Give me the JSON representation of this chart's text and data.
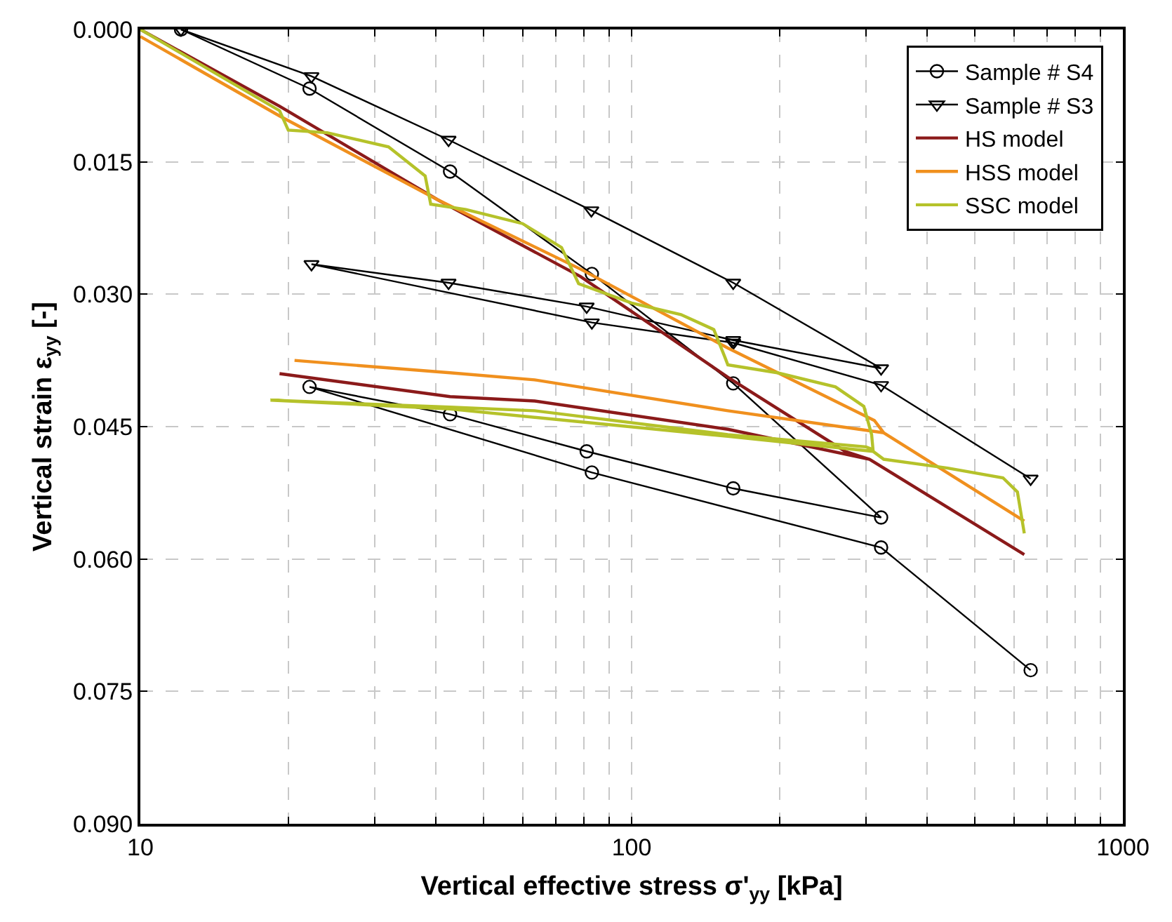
{
  "chart_data": {
    "type": "line",
    "xlabel": "Vertical effective stress σ'$_{yy}$ [kPa]",
    "ylabel": "Vertical strain ε$_{yy}$ [-]",
    "log": "x",
    "grid": true,
    "legend": "top right",
    "line_style": "solid",
    "xlim": [
      10,
      1000
    ],
    "xticks": [
      10,
      {
        "value": 20,
        "label": null
      },
      {
        "value": 30,
        "label": null
      },
      {
        "value": 40,
        "label": null
      },
      {
        "value": 50,
        "label": null
      },
      {
        "value": 60,
        "label": null
      },
      {
        "value": 70,
        "label": null
      },
      {
        "value": 80,
        "label": null
      },
      {
        "value": 90,
        "label": null
      },
      100,
      {
        "value": 200,
        "label": null
      },
      {
        "value": 300,
        "label": null
      },
      {
        "value": 400,
        "label": null
      },
      {
        "value": 500,
        "label": null
      },
      {
        "value": 600,
        "label": null
      },
      {
        "value": 700,
        "label": null
      },
      {
        "value": 800,
        "label": null
      },
      {
        "value": 900,
        "label": null
      },
      1000
    ],
    "ylim": [
      0.09,
      0
    ],
    "yticks": [
      {
        "value": 0,
        "label": "0.000"
      },
      {
        "value": 0.015,
        "label": "0.015"
      },
      {
        "value": 0.03,
        "label": "0.030"
      },
      {
        "value": 0.045,
        "label": "0.045"
      },
      {
        "value": 0.06,
        "label": "0.060"
      },
      {
        "value": 0.075,
        "label": "0.075"
      },
      {
        "value": 0.09,
        "label": "0.090"
      }
    ],
    "series": [
      {
        "name": "Sample # S4",
        "color": "#000000",
        "marker": "circle",
        "x": [
          12.1,
          22.1,
          42.7,
          83,
          161,
          322,
          161,
          81,
          42.7,
          22.1,
          83,
          322,
          649
        ],
        "values": [
          0,
          0.0067,
          0.0161,
          0.0277,
          0.0401,
          0.0553,
          0.052,
          0.0478,
          0.0436,
          0.0405,
          0.0502,
          0.0587,
          0.0726
        ]
      },
      {
        "name": "Sample # S3",
        "color": "#000000",
        "marker": "triangle",
        "x": [
          12.1,
          22.3,
          42.4,
          82.8,
          161,
          322,
          161,
          81,
          42.4,
          22.3,
          83,
          161,
          322,
          649
        ],
        "values": [
          0,
          0.0053,
          0.0125,
          0.0205,
          0.0287,
          0.0384,
          0.0352,
          0.0314,
          0.0287,
          0.0266,
          0.0332,
          0.0355,
          0.0403,
          0.0509
        ]
      },
      {
        "name": "HS model",
        "color": "#8b1a1a",
        "marker": "none",
        "x": [
          10,
          19.2,
          40.3,
          78.7,
          157,
          272,
          305,
          157,
          63.5,
          42.7,
          19.2,
          42.7,
          63.5,
          157,
          305,
          630
        ],
        "values": [
          0,
          0.0087,
          0.0193,
          0.028,
          0.0394,
          0.0478,
          0.0487,
          0.0453,
          0.0421,
          0.0416,
          0.039,
          0.0416,
          0.0421,
          0.0453,
          0.0487,
          0.0595
        ]
      },
      {
        "name": "HSS model",
        "color": "#f0901e",
        "marker": "none",
        "x": [
          10,
          19.2,
          40.3,
          79,
          157,
          312,
          326,
          157,
          63.5,
          42.7,
          20.6,
          42.7,
          63.5,
          157,
          326,
          630
        ],
        "values": [
          0.0008,
          0.0098,
          0.0193,
          0.0272,
          0.0361,
          0.0443,
          0.0457,
          0.0432,
          0.0397,
          0.0389,
          0.0375,
          0.0389,
          0.0397,
          0.0432,
          0.0457,
          0.0557
        ]
      },
      {
        "name": "SSC model",
        "color": "#b5c22a",
        "marker": "none",
        "x": [
          10,
          19.2,
          20,
          24,
          32,
          38,
          39,
          46,
          60,
          72,
          78,
          100,
          126,
          147,
          155,
          157,
          198,
          260,
          297,
          308,
          310,
          300,
          157,
          63.5,
          42.7,
          18.4,
          42.7,
          157,
          310,
          326,
          440,
          570,
          610,
          630
        ],
        "values": [
          0,
          0.0092,
          0.0114,
          0.0117,
          0.0133,
          0.0166,
          0.0198,
          0.0204,
          0.022,
          0.0247,
          0.0288,
          0.031,
          0.0323,
          0.034,
          0.0372,
          0.038,
          0.0389,
          0.0405,
          0.0427,
          0.0459,
          0.0476,
          0.0473,
          0.0459,
          0.0432,
          0.0428,
          0.042,
          0.043,
          0.0461,
          0.0478,
          0.0487,
          0.0497,
          0.0508,
          0.0524,
          0.0571
        ]
      }
    ]
  }
}
